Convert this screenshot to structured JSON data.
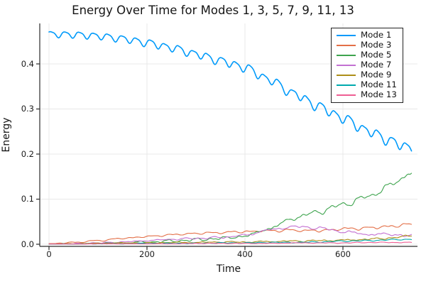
{
  "title": "Energy Over Time for Modes 1, 3, 5, 7, 9, 11, 13",
  "chart_data": {
    "type": "line",
    "title": "Energy Over Time for Modes 1, 3, 5, 7, 9, 11, 13",
    "xlabel": "Time",
    "ylabel": "Energy",
    "xlim": [
      -19,
      753
    ],
    "ylim": [
      -0.005,
      0.49
    ],
    "x_ticks": [
      0,
      200,
      400,
      600
    ],
    "x_tick_labels": [
      "0",
      "200",
      "400",
      "600"
    ],
    "y_ticks": [
      0.0,
      0.1,
      0.2,
      0.3,
      0.4
    ],
    "y_tick_labels": [
      "0.0",
      "0.1",
      "0.2",
      "0.3",
      "0.4"
    ],
    "grid": true,
    "legend_position": "top-right",
    "background": "#ffffff",
    "axis_color": "#2b2b2b",
    "grid_color": "#e8e8e8",
    "x_keypoints": [
      0,
      50,
      100,
      150,
      200,
      250,
      300,
      350,
      400,
      450,
      500,
      550,
      600,
      650,
      700,
      740
    ],
    "x_max": 740,
    "series": [
      {
        "name": "Mode 1",
        "color": "#009AFA",
        "values": [
          0.466,
          0.465,
          0.462,
          0.456,
          0.447,
          0.436,
          0.422,
          0.407,
          0.392,
          0.365,
          0.334,
          0.306,
          0.28,
          0.252,
          0.228,
          0.212
        ],
        "osc": {
          "period": 29,
          "amp": 0.008,
          "amp_end": 0.013,
          "noise": 0.0,
          "noise_end": 0.0,
          "phase": 0.6,
          "seed": 1,
          "skew": 0.25
        },
        "width": 1.6
      },
      {
        "name": "Mode 3",
        "color": "#E36F47",
        "values": [
          0.001,
          0.004,
          0.008,
          0.013,
          0.017,
          0.021,
          0.024,
          0.026,
          0.028,
          0.03,
          0.031,
          0.03,
          0.034,
          0.036,
          0.04,
          0.044
        ],
        "osc": {
          "period": 40,
          "amp": 0.0012,
          "amp_end": 0.0038,
          "noise": 0.0004,
          "noise_end": 0.0015,
          "phase": 0.0,
          "seed": 2,
          "skew": 0.55
        },
        "width": 1.1
      },
      {
        "name": "Mode 5",
        "color": "#3EA44E",
        "values": [
          0.0,
          0.001,
          0.002,
          0.003,
          0.005,
          0.007,
          0.01,
          0.013,
          0.018,
          0.035,
          0.058,
          0.072,
          0.088,
          0.105,
          0.132,
          0.16
        ],
        "osc": {
          "period": 30,
          "amp": 0.0008,
          "amp_end": 0.0035,
          "noise": 0.0008,
          "noise_end": 0.006,
          "phase": 1.2,
          "seed": 3,
          "skew": 0.2
        },
        "width": 1.1
      },
      {
        "name": "Mode 7",
        "color": "#C371D2",
        "values": [
          0.0,
          0.001,
          0.003,
          0.005,
          0.008,
          0.011,
          0.013,
          0.015,
          0.02,
          0.032,
          0.039,
          0.036,
          0.028,
          0.022,
          0.022,
          0.018
        ],
        "osc": {
          "period": 31,
          "amp": 0.0008,
          "amp_end": 0.002,
          "noise": 0.0006,
          "noise_end": 0.0035,
          "phase": 2.1,
          "seed": 4,
          "skew": 0.3
        },
        "width": 1.1
      },
      {
        "name": "Mode 9",
        "color": "#AC8E18",
        "values": [
          0.0,
          0.001,
          0.002,
          0.003,
          0.003,
          0.004,
          0.004,
          0.005,
          0.005,
          0.006,
          0.007,
          0.008,
          0.009,
          0.011,
          0.014,
          0.019
        ],
        "osc": {
          "period": 33,
          "amp": 0.0004,
          "amp_end": 0.001,
          "noise": 0.0005,
          "noise_end": 0.0025,
          "phase": 0.4,
          "seed": 5,
          "skew": 0.4
        },
        "width": 1.1
      },
      {
        "name": "Mode 11",
        "color": "#00AAAE",
        "values": [
          0.0,
          0.0,
          0.001,
          0.001,
          0.002,
          0.002,
          0.002,
          0.003,
          0.003,
          0.004,
          0.004,
          0.005,
          0.007,
          0.008,
          0.01,
          0.011
        ],
        "osc": {
          "period": 27,
          "amp": 0.0003,
          "amp_end": 0.0008,
          "noise": 0.0004,
          "noise_end": 0.0012,
          "phase": 1.7,
          "seed": 6,
          "skew": 0.2
        },
        "width": 1.1
      },
      {
        "name": "Mode 13",
        "color": "#EE5E93",
        "values": [
          0.0,
          0.0,
          0.001,
          0.001,
          0.001,
          0.001,
          0.002,
          0.002,
          0.002,
          0.002,
          0.003,
          0.003,
          0.003,
          0.004,
          0.004,
          0.004
        ],
        "osc": {
          "period": 25,
          "amp": 0.0002,
          "amp_end": 0.0005,
          "noise": 0.0003,
          "noise_end": 0.0008,
          "phase": 0.9,
          "seed": 7,
          "skew": 0.2
        },
        "width": 1.1
      }
    ]
  }
}
